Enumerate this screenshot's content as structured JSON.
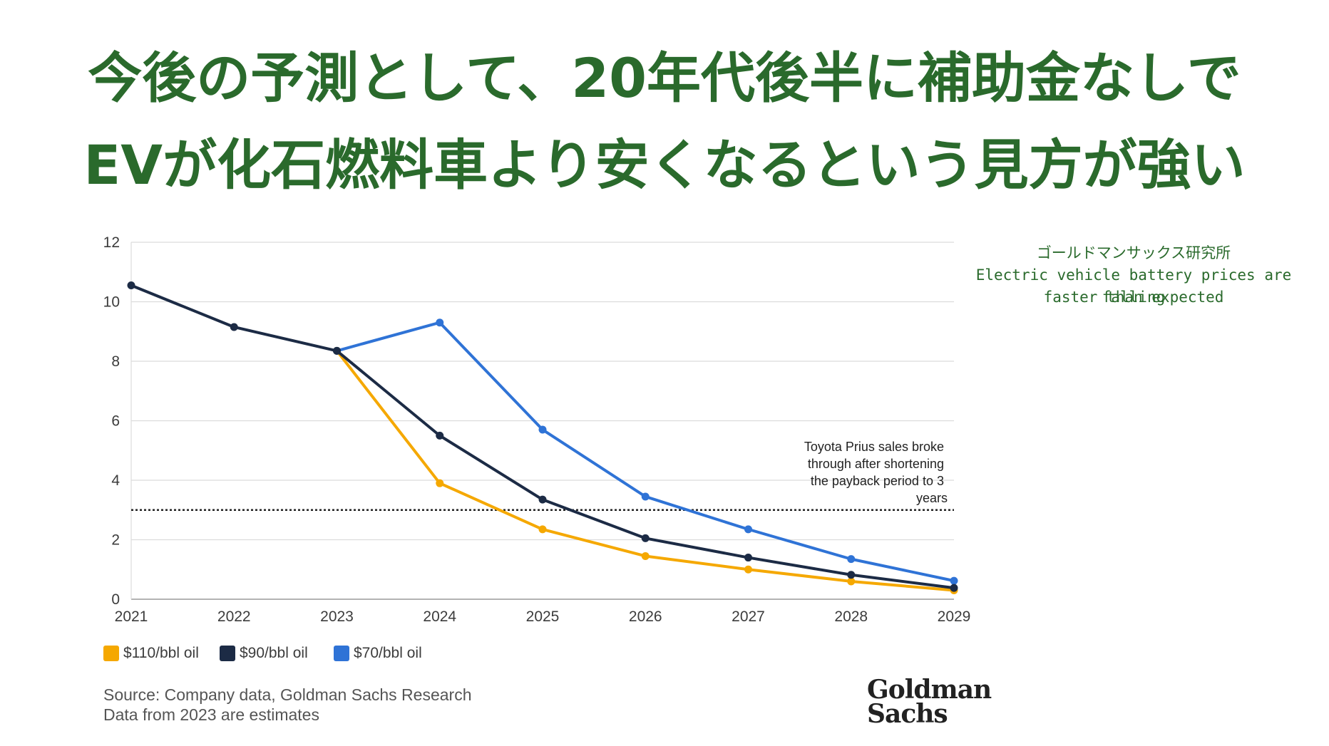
{
  "headline": {
    "line1": "今後の予測として、20年代後半に補助金なしで",
    "line2": "EVが化石燃料車より安くなるという見方が強い"
  },
  "note": {
    "line1": "ゴールドマンサックス研究所",
    "line2": "Electric vehicle battery prices are falling",
    "line3": "faster than expected"
  },
  "chart_data": {
    "type": "line",
    "title": "",
    "xlabel": "",
    "ylabel": "",
    "x": [
      "2021",
      "2022",
      "2023",
      "2024",
      "2025",
      "2026",
      "2027",
      "2028",
      "2029"
    ],
    "ylim": [
      0,
      12
    ],
    "yticks": [
      "0",
      "2",
      "4",
      "6",
      "8",
      "10",
      "12"
    ],
    "grid": true,
    "legend_position": "bottom-left",
    "series": [
      {
        "name": "$110/bbl oil",
        "color": "#f5a800",
        "x": [
          "2023",
          "2024",
          "2025",
          "2026",
          "2027",
          "2028",
          "2029"
        ],
        "values": [
          8.35,
          3.9,
          2.35,
          1.45,
          1.0,
          0.6,
          0.3
        ]
      },
      {
        "name": "$90/bbl oil",
        "color": "#1c2b45",
        "x": [
          "2021",
          "2022",
          "2023",
          "2024",
          "2025",
          "2026",
          "2027",
          "2028",
          "2029"
        ],
        "values": [
          10.55,
          9.15,
          8.35,
          5.5,
          3.35,
          2.05,
          1.4,
          0.82,
          0.38
        ]
      },
      {
        "name": "$70/bbl oil",
        "color": "#2f73d6",
        "x": [
          "2023",
          "2024",
          "2025",
          "2026",
          "2027",
          "2028",
          "2029"
        ],
        "values": [
          8.35,
          9.3,
          5.7,
          3.45,
          2.35,
          1.35,
          0.62
        ]
      }
    ],
    "reference_line": {
      "y": 3,
      "label_lines": [
        "Toyota Prius sales broke",
        "through after shortening",
        "the payback period to 3",
        "years"
      ]
    }
  },
  "source": {
    "line1": "Source: Company data, Goldman Sachs Research",
    "line2": "Data from 2023 are estimates"
  },
  "logo": {
    "line1": "Goldman",
    "line2": "Sachs"
  }
}
